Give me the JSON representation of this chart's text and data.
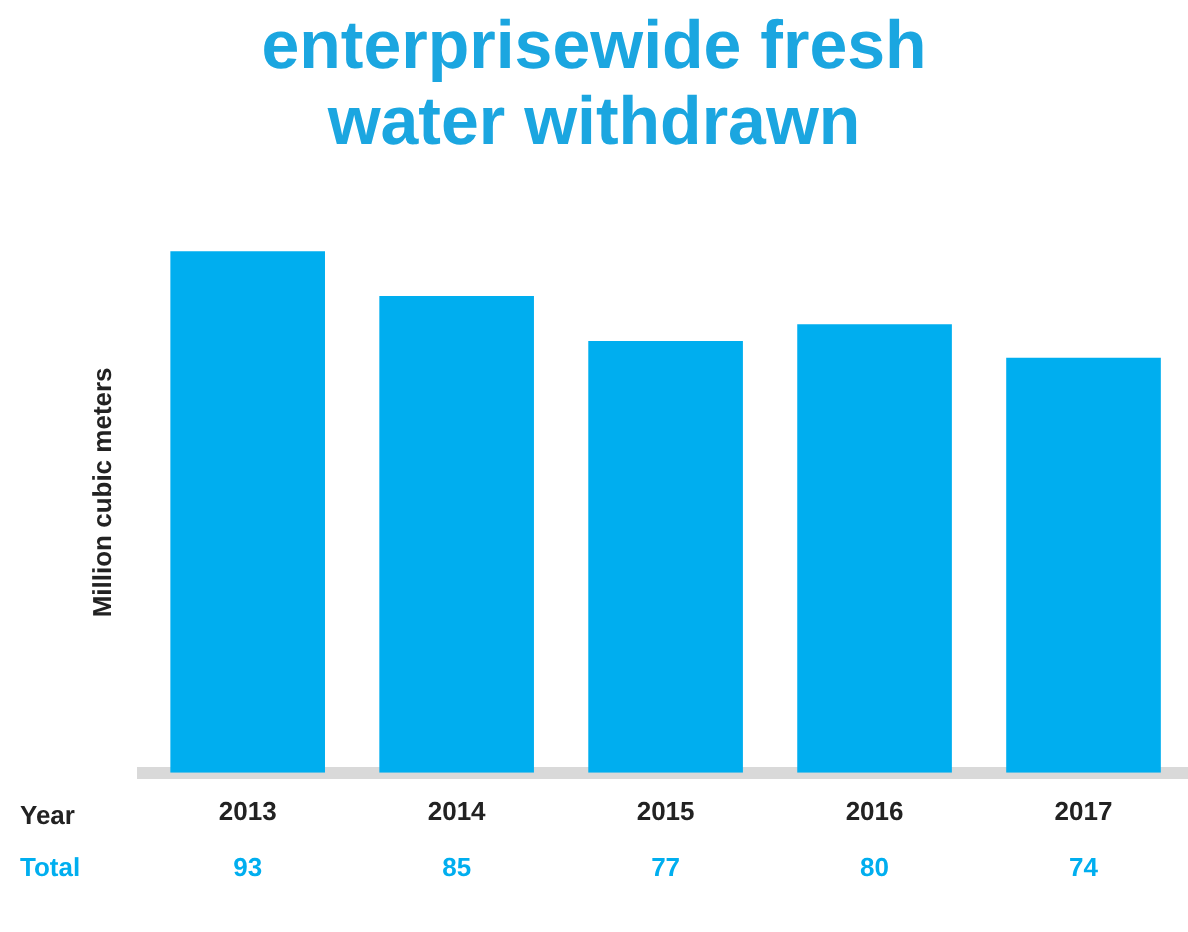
{
  "chart_data": {
    "type": "bar",
    "title": "enterprisewide fresh water withdrawn",
    "xlabel": "Year",
    "ylabel": "Million cubic meters",
    "annotations": [
      "Total"
    ],
    "categories": [
      "2013",
      "2014",
      "2015",
      "2016",
      "2017"
    ],
    "values": [
      93,
      85,
      77,
      80,
      74
    ],
    "color": "#00aeef",
    "data_labels": true,
    "grid": false,
    "legend": false
  }
}
